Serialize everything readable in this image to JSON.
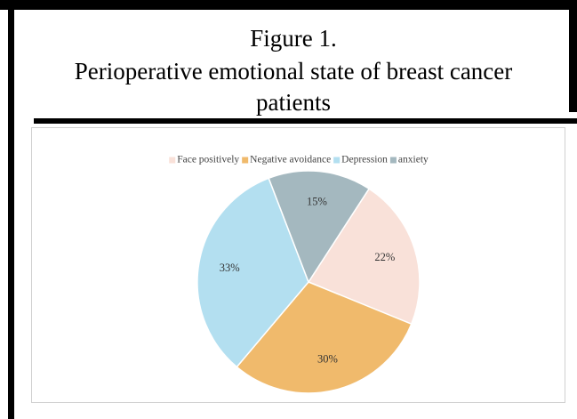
{
  "chart_data": {
    "type": "pie",
    "title": [
      "Figure 1.",
      "Perioperative emotional state of breast cancer",
      "patients"
    ],
    "categories": [
      "Face positively",
      "Negative avoidance",
      "Depression",
      "anxiety"
    ],
    "values": [
      22,
      30,
      33,
      15
    ],
    "value_labels": [
      "22%",
      "30%",
      "33%",
      "15%"
    ],
    "colors": [
      "#f9e1d9",
      "#f0ba6c",
      "#b3dff0",
      "#a4b8bf"
    ],
    "legend": "top"
  }
}
